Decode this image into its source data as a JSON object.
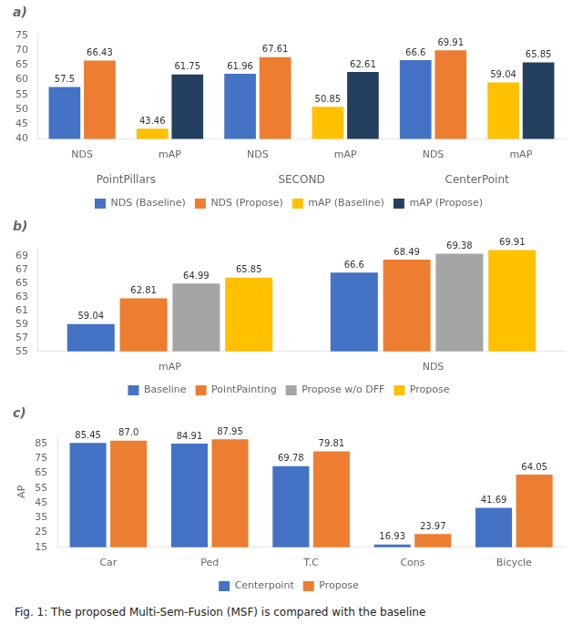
{
  "chart_data": [
    {
      "type": "bar",
      "title": "a)",
      "categories": [
        "NDS",
        "mAP",
        "NDS",
        "mAP",
        "NDS",
        "mAP"
      ],
      "groups": [
        "PointPillars",
        "SECOND",
        "CenterPoint"
      ],
      "series": [
        {
          "name": "NDS (Baseline)",
          "color": "#4472C4",
          "values": [
            57.5,
            null,
            61.96,
            null,
            66.6,
            null
          ]
        },
        {
          "name": "NDS (Propose)",
          "color": "#ED7D31",
          "values": [
            66.43,
            null,
            67.61,
            null,
            69.91,
            null
          ]
        },
        {
          "name": "mAP (Baseline)",
          "color": "#FFC000",
          "values": [
            null,
            43.46,
            null,
            50.85,
            null,
            59.04
          ]
        },
        {
          "name": "mAP (Propose)",
          "color": "#243F60",
          "values": [
            null,
            61.75,
            null,
            62.61,
            null,
            65.85
          ]
        }
      ],
      "ylim": [
        40,
        75
      ],
      "yticks": [
        40,
        45,
        50,
        55,
        60,
        65,
        70,
        75
      ],
      "grid": false,
      "legend": "bottom",
      "data_labels": true
    },
    {
      "type": "bar",
      "title": "b)",
      "categories": [
        "mAP",
        "NDS"
      ],
      "series": [
        {
          "name": "Baseline",
          "color": "#4472C4",
          "values": [
            59.04,
            66.6
          ]
        },
        {
          "name": "PointPainting",
          "color": "#ED7D31",
          "values": [
            62.81,
            68.49
          ]
        },
        {
          "name": "Propose w/o DFF",
          "color": "#A5A5A5",
          "values": [
            64.99,
            69.38
          ]
        },
        {
          "name": "Propose",
          "color": "#FFC000",
          "values": [
            65.85,
            69.91
          ]
        }
      ],
      "ylim": [
        55,
        70
      ],
      "yticks": [
        55,
        57,
        59,
        61,
        63,
        65,
        67,
        69
      ],
      "grid": false,
      "legend": "bottom",
      "data_labels": true
    },
    {
      "type": "bar",
      "title": "c)",
      "categories": [
        "Car",
        "Ped",
        "T.C",
        "Cons",
        "Bicycle"
      ],
      "series": [
        {
          "name": "Centerpoint",
          "color": "#4472C4",
          "values": [
            85.45,
            84.91,
            69.78,
            16.93,
            41.69
          ]
        },
        {
          "name": "Propose",
          "color": "#ED7D31",
          "values": [
            87.0,
            87.95,
            79.81,
            23.97,
            64.05
          ],
          "value_labels": [
            "87.0",
            "87.95",
            "79.81",
            "23.97",
            "64.05"
          ]
        }
      ],
      "ylabel": "AP",
      "ylim": [
        15,
        90
      ],
      "yticks": [
        15,
        25,
        35,
        45,
        55,
        65,
        75,
        85
      ],
      "grid": false,
      "legend": "bottom",
      "data_labels": true
    }
  ],
  "caption": "Fig. 1: The proposed Multi-Sem-Fusion (MSF) is compared with the baseline"
}
